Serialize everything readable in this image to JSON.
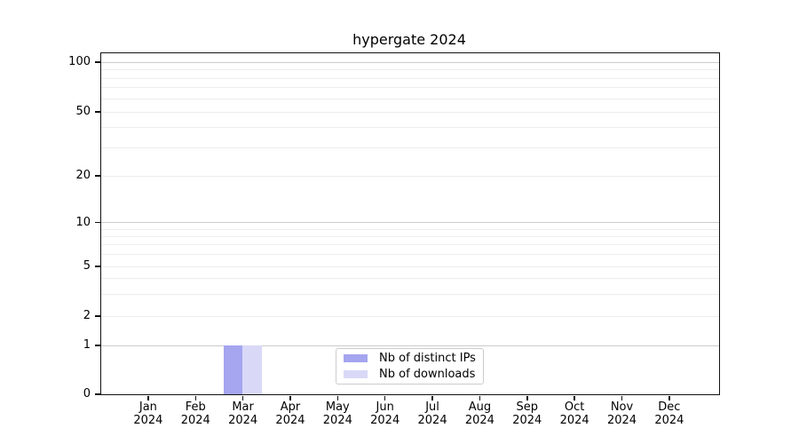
{
  "chart_data": {
    "type": "bar",
    "title": "hypergate 2024",
    "categories": [
      "Jan 2024",
      "Feb 2024",
      "Mar 2024",
      "Apr 2024",
      "May 2024",
      "Jun 2024",
      "Jul 2024",
      "Aug 2024",
      "Sep 2024",
      "Oct 2024",
      "Nov 2024",
      "Dec 2024"
    ],
    "series": [
      {
        "name": "Nb of distinct IPs",
        "color": "#a5a5f0",
        "values": [
          0,
          0,
          1,
          0,
          0,
          0,
          0,
          0,
          0,
          0,
          0,
          0
        ]
      },
      {
        "name": "Nb of downloads",
        "color": "#d9d9f7",
        "values": [
          0,
          0,
          1,
          0,
          0,
          0,
          0,
          0,
          0,
          0,
          0,
          0
        ]
      }
    ],
    "y_axis": {
      "scale": "symlog",
      "ticks": [
        0,
        1,
        2,
        5,
        10,
        20,
        50,
        100
      ],
      "minor_ticks": [
        3,
        4,
        6,
        7,
        8,
        9,
        30,
        40,
        60,
        70,
        80,
        90
      ],
      "major_grid_values": [
        1,
        10,
        100
      ],
      "range": [
        0,
        120
      ]
    },
    "x_axis": {
      "label_year_on_second_line": true
    },
    "grid": {
      "show": true,
      "major_color": "#cccccc",
      "minor_color": "#ededed"
    },
    "legend": {
      "position": "lower center",
      "entries": [
        "Nb of distinct IPs",
        "Nb of downloads"
      ]
    },
    "bar_layout": {
      "grouped": true,
      "group_of": 2,
      "value_shown": 1
    }
  }
}
